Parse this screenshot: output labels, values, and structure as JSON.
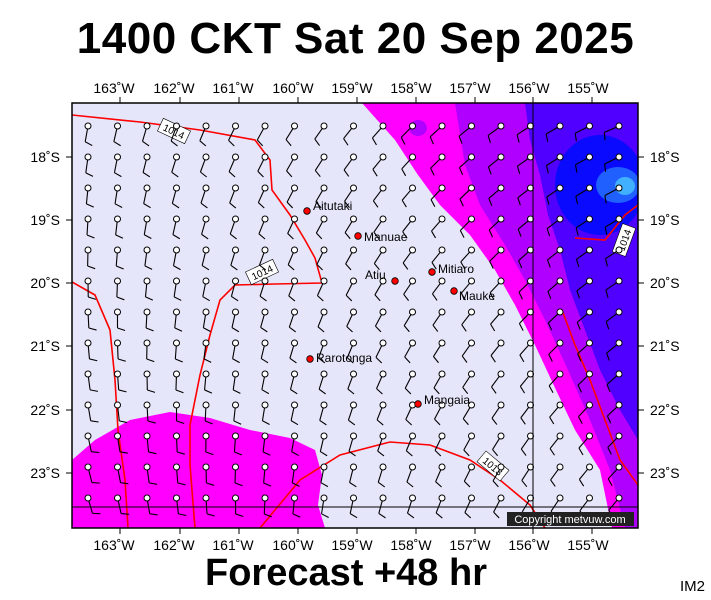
{
  "title": "1400 CKT Sat 20 Sep 2025",
  "footer": "Forecast +48 hr",
  "image_code": "IM2",
  "copyright": "Copyright metvuw.com",
  "map": {
    "longitude_labels": [
      "163˚W",
      "162˚W",
      "161˚W",
      "160˚W",
      "159˚W",
      "158˚W",
      "157˚W",
      "156˚W",
      "155˚W"
    ],
    "latitude_labels": [
      "18˚S",
      "19˚S",
      "20˚S",
      "21˚S",
      "22˚S",
      "23˚S"
    ],
    "isobar_labels": [
      "1014",
      "1014",
      "1014",
      "1013"
    ],
    "places": [
      {
        "name": "Aitutaki"
      },
      {
        "name": "Manuae"
      },
      {
        "name": "Atiu"
      },
      {
        "name": "Mitiaro"
      },
      {
        "name": "Mauke"
      },
      {
        "name": "Rarotonga"
      },
      {
        "name": "Mangaia"
      }
    ],
    "colors": {
      "background": "#e6e6fa",
      "light_rain": "#ff00ff",
      "medium_rain": "#b000ff",
      "heavy_rain": "#5000ff",
      "very_heavy_rain": "#0a0aff",
      "extreme_rain": "#40b0ff",
      "isobar": "#ff0000",
      "place_marker": "#ff0000"
    }
  }
}
